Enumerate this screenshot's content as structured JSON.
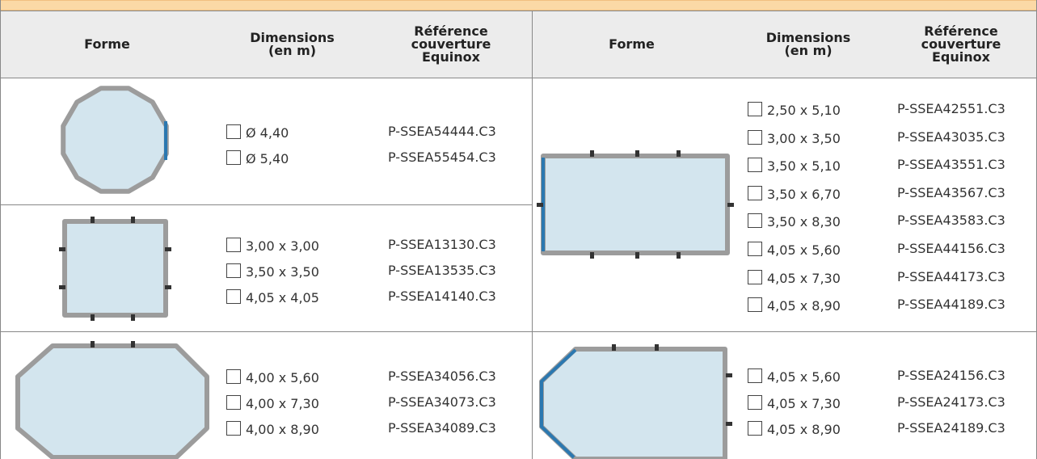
{
  "header": {
    "columns": [
      "Forme",
      "Dimensions\n(en m)",
      "Référence\ncouverture\nEquinox",
      "Forme",
      "Dimensions\n(en m)",
      "Référence\ncouverture\nEquinox"
    ]
  },
  "left_groups": [
    {
      "dimensions": [
        "Ø 4,40",
        "Ø 5,40"
      ],
      "references": [
        "P-SSEA54444.C3",
        "P-SSEA55454.C3"
      ]
    },
    {
      "dimensions": [
        "3,00 x 3,00",
        "3,50 x 3,50",
        "4,05 x 4,05"
      ],
      "references": [
        "P-SSEA13130.C3",
        "P-SSEA13535.C3",
        "P-SSEA14140.C3"
      ]
    },
    {
      "dimensions": [
        "4,00 x 5,60",
        "4,00 x 7,30",
        "4,00 x 8,90"
      ],
      "references": [
        "P-SSEA34056.C3",
        "P-SSEA34073.C3",
        "P-SSEA34089.C3"
      ]
    }
  ],
  "right_groups": [
    {
      "dimensions": [
        "2,50 x 5,10",
        "3,00 x 3,50",
        "3,50 x 5,10",
        "3,50 x 6,70",
        "3,50 x 8,30",
        "4,05 x 5,60",
        "4,05 x 7,30",
        "4,05 x 8,90"
      ],
      "references": [
        "P-SSEA42551.C3",
        "P-SSEA43035.C3",
        "P-SSEA43551.C3",
        "P-SSEA43567.C3",
        "P-SSEA43583.C3",
        "P-SSEA44156.C3",
        "P-SSEA44173.C3",
        "P-SSEA44189.C3"
      ]
    },
    {
      "dimensions": [
        "4,05 x 5,60",
        "4,05 x 7,30",
        "4,05 x 8,90"
      ],
      "references": [
        "P-SSEA24156.C3",
        "P-SSEA24173.C3",
        "P-SSEA24189.C3"
      ]
    }
  ]
}
